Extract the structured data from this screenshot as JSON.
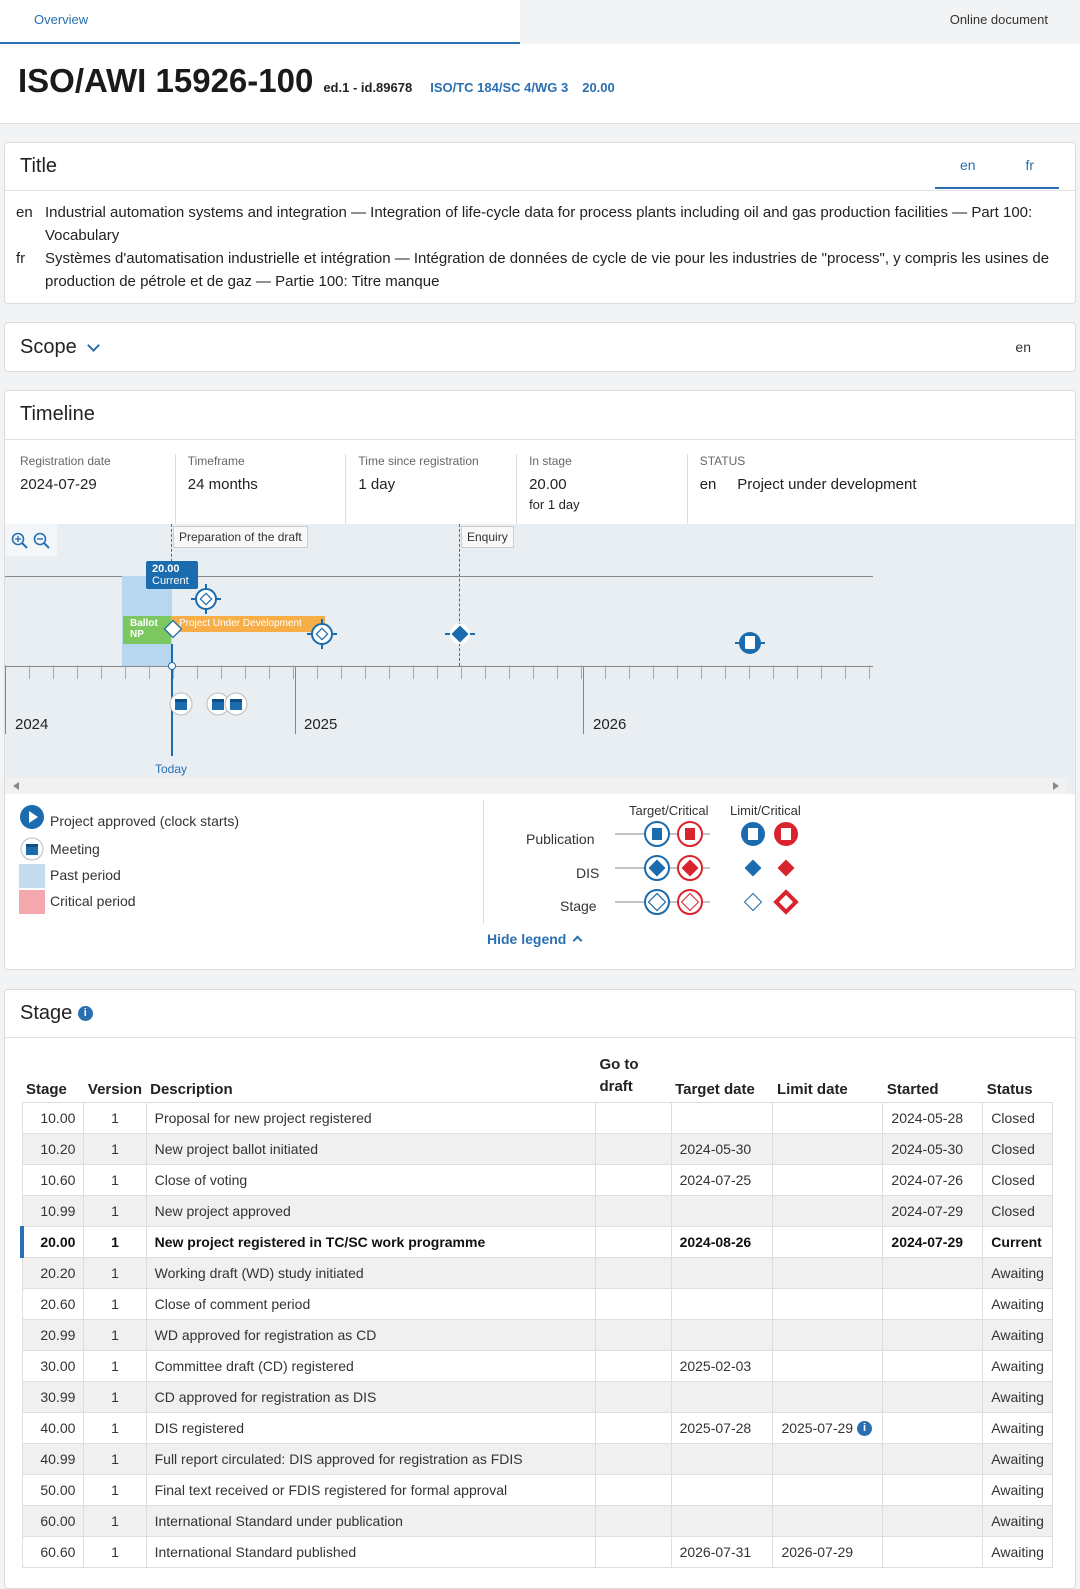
{
  "tabs": {
    "overview": "Overview",
    "online": "Online document"
  },
  "header": {
    "doc_id": "ISO/AWI 15926-100",
    "edition": "ed.1 - id.89678",
    "committee": "ISO/TC 184/SC 4/WG 3",
    "stage_code": "20.00"
  },
  "title_card": {
    "heading": "Title",
    "lang_en": "en",
    "lang_fr": "fr",
    "rows": [
      {
        "lang": "en",
        "text": "Industrial automation systems and integration — Integration of life-cycle data for process plants including oil and gas production facilities — Part 100: Vocabulary"
      },
      {
        "lang": "fr",
        "text": "Systèmes d'automatisation industrielle et intégration — Intégration de données de cycle de vie pour les industries de \"process\", y compris les usines de production de pétrole et de gaz — Partie 100: Titre manque"
      }
    ]
  },
  "scope_card": {
    "heading": "Scope",
    "lang": "en"
  },
  "timeline": {
    "heading": "Timeline",
    "info": [
      {
        "label": "Registration date",
        "value": "2024-07-29"
      },
      {
        "label": "Timeframe",
        "value": "24 months"
      },
      {
        "label": "Time since registration",
        "value": "1 day"
      },
      {
        "label": "In stage",
        "value": "20.00",
        "sub": "for 1 day"
      },
      {
        "label": "STATUS",
        "value": "en     Project under development"
      }
    ],
    "phases": [
      "Preparation of the draft",
      "Enquiry"
    ],
    "current_badge": {
      "code": "20.00",
      "label": "Current"
    },
    "ballot_label": "Ballot NP",
    "bar_label": "Project Under Development",
    "years": [
      "2024",
      "2025",
      "2026"
    ],
    "today_label": "Today"
  },
  "legend": {
    "items": [
      "Project approved (clock starts)",
      "Meeting",
      "Past period",
      "Critical period"
    ],
    "col_target": "Target/Critical",
    "col_limit": "Limit/Critical",
    "rows": [
      "Publication",
      "DIS",
      "Stage"
    ],
    "hide": "Hide legend"
  },
  "stage_card": {
    "heading": "Stage",
    "columns": [
      "Stage",
      "Version",
      "Description",
      "Go to draft",
      "Target date",
      "Limit date",
      "Started",
      "Status"
    ],
    "rows": [
      [
        "10.00",
        "1",
        "Proposal for new project registered",
        "",
        "",
        "",
        "2024-05-28",
        "Closed"
      ],
      [
        "10.20",
        "1",
        "New project ballot initiated",
        "",
        "2024-05-30",
        "",
        "2024-05-30",
        "Closed"
      ],
      [
        "10.60",
        "1",
        "Close of voting",
        "",
        "2024-07-25",
        "",
        "2024-07-26",
        "Closed"
      ],
      [
        "10.99",
        "1",
        "New project approved",
        "",
        "",
        "",
        "2024-07-29",
        "Closed"
      ],
      [
        "20.00",
        "1",
        "New project registered in TC/SC work programme",
        "",
        "2024-08-26",
        "",
        "2024-07-29",
        "Current"
      ],
      [
        "20.20",
        "1",
        "Working draft (WD) study initiated",
        "",
        "",
        "",
        "",
        "Awaiting"
      ],
      [
        "20.60",
        "1",
        "Close of comment period",
        "",
        "",
        "",
        "",
        "Awaiting"
      ],
      [
        "20.99",
        "1",
        "WD approved for registration as CD",
        "",
        "",
        "",
        "",
        "Awaiting"
      ],
      [
        "30.00",
        "1",
        "Committee draft (CD) registered",
        "",
        "2025-02-03",
        "",
        "",
        "Awaiting"
      ],
      [
        "30.99",
        "1",
        "CD approved for registration as DIS",
        "",
        "",
        "",
        "",
        "Awaiting"
      ],
      [
        "40.00",
        "1",
        "DIS registered",
        "",
        "2025-07-28",
        "2025-07-29",
        "",
        "Awaiting"
      ],
      [
        "40.99",
        "1",
        "Full report circulated: DIS approved for registration as FDIS",
        "",
        "",
        "",
        "",
        "Awaiting"
      ],
      [
        "50.00",
        "1",
        "Final text received or FDIS registered for formal approval",
        "",
        "",
        "",
        "",
        "Awaiting"
      ],
      [
        "60.00",
        "1",
        "International Standard under publication",
        "",
        "",
        "",
        "",
        "Awaiting"
      ],
      [
        "60.60",
        "1",
        "International Standard published",
        "",
        "2026-07-31",
        "2026-07-29",
        "",
        "Awaiting"
      ]
    ]
  }
}
